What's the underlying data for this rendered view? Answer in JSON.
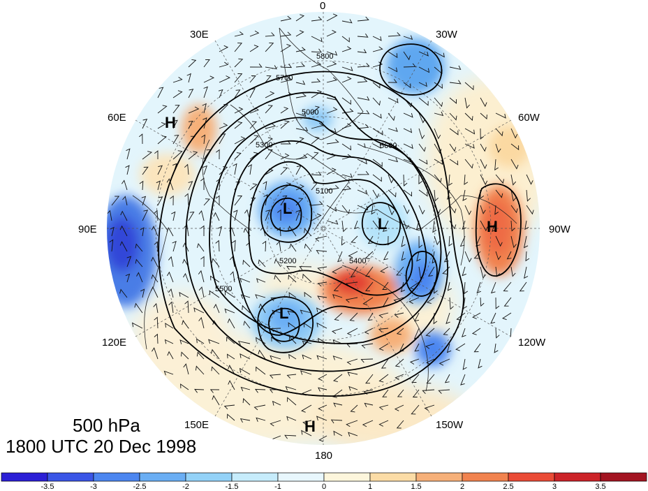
{
  "caption": {
    "level": "500 hPa",
    "time": "1800 UTC 20 Dec 1998"
  },
  "longitude_labels": {
    "lon_0": "0",
    "lon_30w": "30W",
    "lon_60w": "60W",
    "lon_90w": "90W",
    "lon_120w": "120W",
    "lon_150w": "150W",
    "lon_180": "180",
    "lon_150e": "150E",
    "lon_120e": "120E",
    "lon_90e": "90E",
    "lon_60e": "60E",
    "lon_30e": "30E"
  },
  "pressure_centers": {
    "h_east_asia": "H",
    "h_north_america": "H",
    "h_pacific": "H",
    "l_north_pole": "L",
    "l_siberia": "L",
    "l_canada": "L"
  },
  "contour_labels": [
    "5800",
    "5700",
    "5600",
    "5500",
    "5400",
    "5300",
    "5200",
    "5100",
    "5000"
  ],
  "colorbar": {
    "ticks": [
      "-3.5",
      "-3",
      "-2.5",
      "-2",
      "-1.5",
      "-1",
      "0",
      "1",
      "1.5",
      "2",
      "2.5",
      "3",
      "3.5"
    ],
    "colors": [
      "#2b1fd6",
      "#3a55e6",
      "#4c86f0",
      "#6aaef4",
      "#93d2f8",
      "#c6ecfb",
      "#e8f7fd",
      "#fdf6dc",
      "#fbdca6",
      "#f6b079",
      "#f1834f",
      "#ea4b36",
      "#cc2328",
      "#a31421"
    ]
  }
}
